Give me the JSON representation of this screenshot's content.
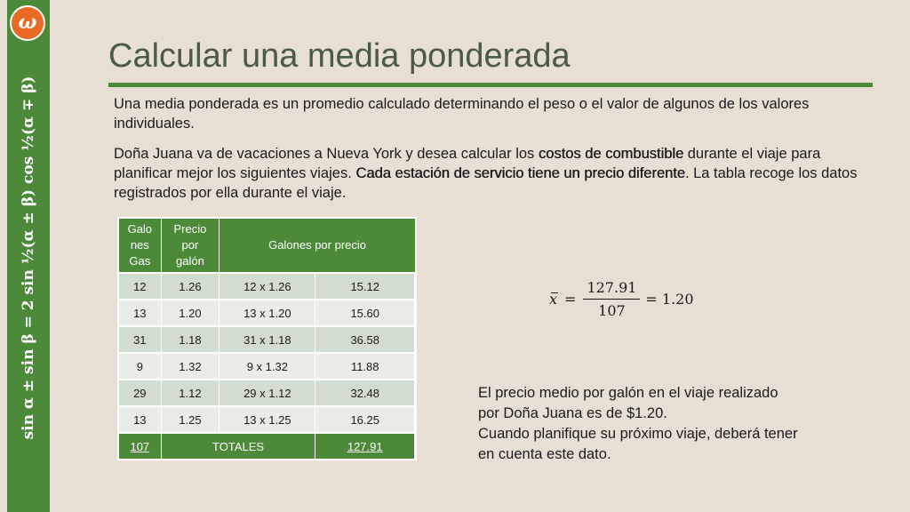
{
  "sidebar": {
    "logo_text": "ω",
    "formula": "sin α ± sin β = 2 sin ½(α ± β) cos ½(α ∓ β)"
  },
  "title": "Calcular una media ponderada",
  "paragraph1": "Una media ponderada es un promedio calculado determinando el peso o el valor de algunos de los valores individuales.",
  "paragraph2": {
    "t1": "Doña Juana va de vacaciones a Nueva York y desea calcular los ",
    "b1": "costos de combustible",
    "t2": " durante el viaje para planificar mejor los siguientes viajes. ",
    "b2": "Cada estación de servicio tiene un precio diferente",
    "t3": ". La tabla recoge los datos registrados por ella durante el viaje."
  },
  "table": {
    "headers": [
      "Galo nes Gas",
      "Precio por galón",
      "Galones por precio"
    ],
    "rows": [
      [
        "12",
        "1.26",
        "12 x 1.26",
        "15.12"
      ],
      [
        "13",
        "1.20",
        "13 x 1.20",
        "15.60"
      ],
      [
        "31",
        "1.18",
        "31 x 1.18",
        "36.58"
      ],
      [
        "9",
        "1.32",
        "9 x 1.32",
        "11.88"
      ],
      [
        "29",
        "1.12",
        "29 x 1.12",
        "32.48"
      ],
      [
        "13",
        "1.25",
        "13 x 1.25",
        "16.25"
      ]
    ],
    "total": [
      "107",
      "TOTALES",
      "127.91"
    ]
  },
  "formula": {
    "lhs": "x̄",
    "eq": "=",
    "numerator": "127.91",
    "denominator": "107",
    "result": "= 1.20"
  },
  "conclusion": [
    "El precio medio por galón en el viaje realizado",
    "por Doña Juana es de $1.20.",
    "Cuando planifique su próximo viaje, deberá tener",
    "en cuenta este dato."
  ],
  "colors": {
    "green": "#4c8a3a",
    "background": "#e7dfd3",
    "logo": "#e96a24"
  }
}
